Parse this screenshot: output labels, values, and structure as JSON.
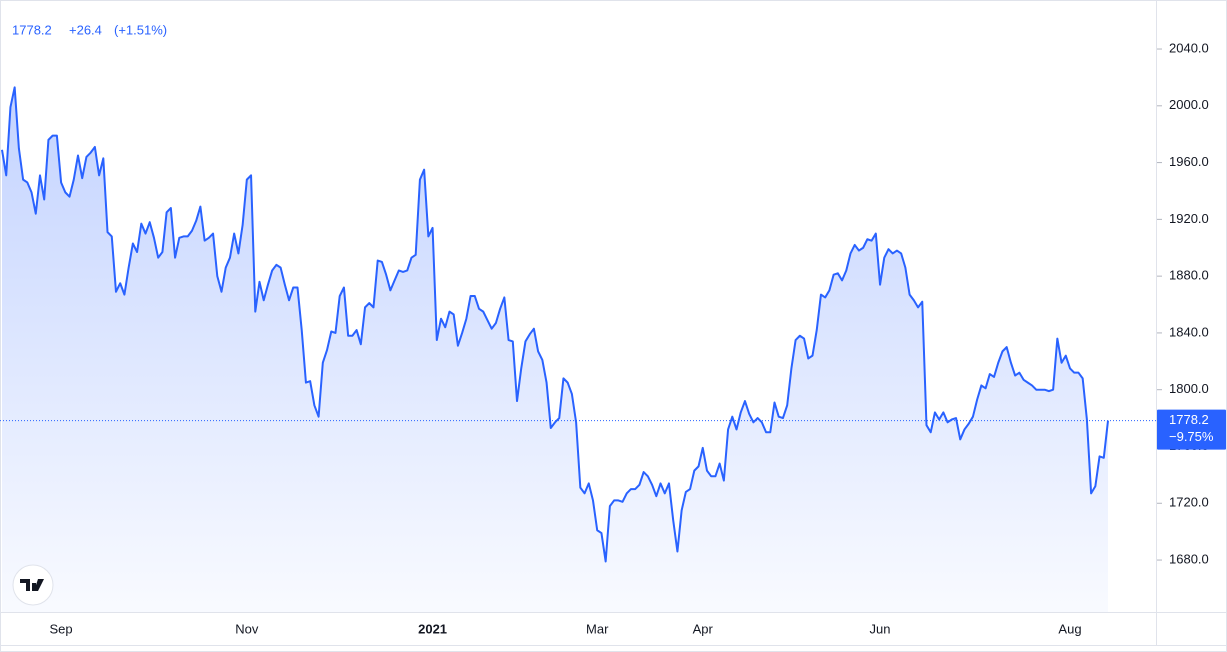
{
  "chart_data": {
    "type": "area",
    "color": "#2962ff",
    "legend_values": {
      "change": "+26.4",
      "change_pct": "(+1.51%)"
    },
    "price_scale_change": "−9.75%",
    "grid": false,
    "ylim": [
      1643.4,
      2068.9
    ],
    "yticks": [
      {
        "value": 1680,
        "label": "1680.0"
      },
      {
        "value": 1720,
        "label": "1720.0"
      },
      {
        "value": 1760,
        "label": "1760.0"
      },
      {
        "value": 1800,
        "label": "1800.0"
      },
      {
        "value": 1840,
        "label": "1840.0"
      },
      {
        "value": 1880,
        "label": "1880.0"
      },
      {
        "value": 1920,
        "label": "1920.0"
      },
      {
        "value": 1960,
        "label": "1960.0"
      },
      {
        "value": 2000,
        "label": "2000.0"
      },
      {
        "value": 2040,
        "label": "2040.0"
      }
    ],
    "categories": [
      null,
      null,
      null,
      null,
      null,
      null,
      null,
      null,
      null,
      null,
      null,
      null,
      null,
      null,
      "Sep",
      null,
      null,
      null,
      null,
      null,
      null,
      null,
      null,
      null,
      null,
      null,
      null,
      null,
      null,
      null,
      null,
      null,
      null,
      null,
      null,
      null,
      null,
      null,
      null,
      null,
      null,
      null,
      null,
      null,
      null,
      null,
      null,
      null,
      null,
      null,
      null,
      null,
      null,
      null,
      null,
      null,
      null,
      null,
      "Nov",
      null,
      null,
      null,
      null,
      null,
      null,
      null,
      null,
      null,
      null,
      null,
      null,
      null,
      null,
      null,
      null,
      null,
      null,
      null,
      null,
      null,
      null,
      null,
      null,
      null,
      null,
      null,
      null,
      null,
      null,
      null,
      null,
      null,
      null,
      null,
      null,
      null,
      null,
      null,
      null,
      null,
      null,
      null,
      "2021",
      null,
      null,
      null,
      null,
      null,
      null,
      null,
      null,
      null,
      null,
      null,
      null,
      null,
      null,
      null,
      null,
      null,
      null,
      null,
      null,
      null,
      null,
      null,
      null,
      null,
      null,
      null,
      null,
      null,
      null,
      null,
      null,
      null,
      null,
      null,
      null,
      null,
      null,
      "Mar",
      null,
      null,
      null,
      null,
      null,
      null,
      null,
      null,
      null,
      null,
      null,
      null,
      null,
      null,
      null,
      null,
      null,
      null,
      null,
      null,
      null,
      null,
      null,
      null,
      "Apr",
      null,
      null,
      null,
      null,
      null,
      null,
      null,
      null,
      null,
      null,
      null,
      null,
      null,
      null,
      null,
      null,
      null,
      null,
      null,
      null,
      null,
      null,
      null,
      null,
      null,
      null,
      null,
      null,
      null,
      null,
      null,
      null,
      null,
      null,
      null,
      null,
      null,
      null,
      null,
      null,
      null,
      "Jun",
      null,
      null,
      null,
      null,
      null,
      null,
      null,
      null,
      null,
      null,
      null,
      null,
      null,
      null,
      null,
      null,
      null,
      null,
      null,
      null,
      null,
      null,
      null,
      null,
      null,
      null,
      null,
      null,
      null,
      null,
      null,
      null,
      null,
      null,
      null,
      null,
      null,
      null,
      null,
      null,
      null,
      null,
      null,
      null,
      "Aug",
      null,
      null,
      null,
      null,
      null,
      null,
      null,
      null,
      null
    ],
    "values": [
      1969,
      1951,
      1999,
      2013,
      1970,
      1948,
      1946,
      1939,
      1924,
      1951,
      1934,
      1976,
      1979,
      1979,
      1946,
      1939,
      1936,
      1948,
      1965,
      1949,
      1964,
      1967,
      1971,
      1951,
      1963,
      1911,
      1908,
      1869,
      1875,
      1867,
      1886,
      1903,
      1897,
      1917,
      1910,
      1918,
      1907,
      1893,
      1897,
      1925,
      1928,
      1893,
      1907,
      1908,
      1908,
      1912,
      1919,
      1929,
      1905,
      1907,
      1910,
      1880,
      1869,
      1886,
      1893,
      1910,
      1896,
      1916,
      1948,
      1951,
      1855,
      1876,
      1863,
      1874,
      1884,
      1888,
      1886,
      1874,
      1863,
      1872,
      1872,
      1842,
      1805,
      1806,
      1789,
      1781,
      1819,
      1828,
      1841,
      1840,
      1866,
      1872,
      1838,
      1838,
      1842,
      1832,
      1858,
      1861,
      1858,
      1891,
      1890,
      1881,
      1870,
      1877,
      1884,
      1883,
      1884,
      1893,
      1895,
      1948,
      1955,
      1908,
      1914,
      1835,
      1850,
      1844,
      1855,
      1853,
      1831,
      1840,
      1850,
      1866,
      1866,
      1857,
      1855,
      1849,
      1843,
      1847,
      1857,
      1865,
      1835,
      1834,
      1792,
      1815,
      1834,
      1839,
      1843,
      1827,
      1821,
      1805,
      1773,
      1777,
      1780,
      1808,
      1805,
      1797,
      1777,
      1731,
      1727,
      1734,
      1722,
      1701,
      1699,
      1679,
      1718,
      1722,
      1722,
      1721,
      1727,
      1730,
      1730,
      1733,
      1742,
      1739,
      1733,
      1725,
      1734,
      1727,
      1734,
      1708,
      1686,
      1715,
      1728,
      1730,
      1743,
      1746,
      1759,
      1743,
      1739,
      1739,
      1748,
      1736,
      1772,
      1781,
      1772,
      1784,
      1792,
      1783,
      1777,
      1780,
      1777,
      1770,
      1770,
      1791,
      1781,
      1780,
      1789,
      1815,
      1835,
      1838,
      1836,
      1822,
      1824,
      1842,
      1867,
      1865,
      1870,
      1881,
      1882,
      1877,
      1884,
      1896,
      1902,
      1898,
      1900,
      1906,
      1905,
      1910,
      1874,
      1893,
      1899,
      1896,
      1898,
      1896,
      1886,
      1867,
      1863,
      1858,
      1862,
      1775,
      1770,
      1784,
      1779,
      1784,
      1777,
      1779,
      1780,
      1765,
      1772,
      1776,
      1781,
      1793,
      1803,
      1801,
      1811,
      1809,
      1819,
      1827,
      1830,
      1819,
      1810,
      1812,
      1807,
      1805,
      1803,
      1800,
      1800,
      1800,
      1799,
      1800,
      1836,
      1819,
      1824,
      1815,
      1812,
      1812,
      1808,
      1779,
      1727,
      1732,
      1753,
      1752,
      1778.2
    ]
  }
}
